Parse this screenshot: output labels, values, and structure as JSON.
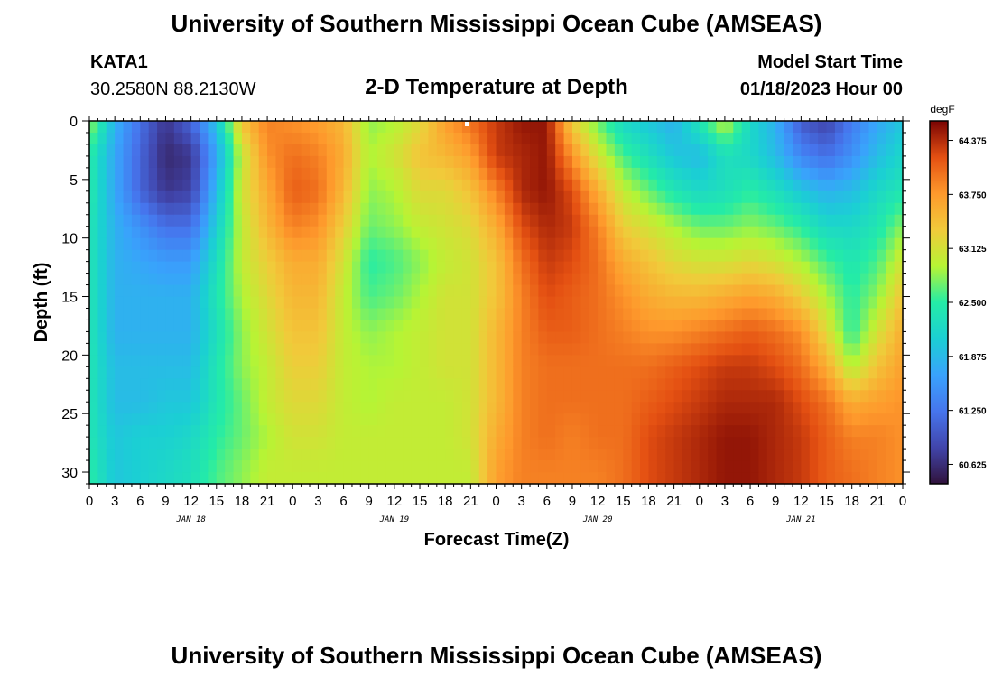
{
  "header": {
    "title": "University of Southern Mississippi Ocean Cube (AMSEAS)",
    "station_id": "KATA1",
    "coordinates": "30.2580N  88.2130W",
    "plot_title": "2-D Temperature at Depth",
    "model_start_label": "Model Start Time",
    "model_start_value": "01/18/2023 Hour 00"
  },
  "footer": {
    "title": "University of Southern Mississippi Ocean Cube (AMSEAS)"
  },
  "chart_data": {
    "type": "heatmap",
    "xlabel": "Forecast Time(Z)",
    "ylabel": "Depth (ft)",
    "x_hours_range": [
      0,
      96
    ],
    "x_tick_step_hours": 3,
    "x_tick_labels": [
      "0",
      "3",
      "6",
      "9",
      "12",
      "15",
      "18",
      "21",
      "0",
      "3",
      "6",
      "9",
      "12",
      "15",
      "18",
      "21",
      "0",
      "3",
      "6",
      "9",
      "12",
      "15",
      "18",
      "21",
      "0",
      "3",
      "6",
      "9",
      "12",
      "15",
      "18",
      "21",
      "0"
    ],
    "day_labels": [
      {
        "label": "JAN 18",
        "center_hour": 12
      },
      {
        "label": "JAN 19",
        "center_hour": 36
      },
      {
        "label": "JAN 20",
        "center_hour": 60
      },
      {
        "label": "JAN 21",
        "center_hour": 84
      }
    ],
    "y_range_ft": [
      0,
      31
    ],
    "y_ticks": [
      0,
      5,
      10,
      15,
      20,
      25,
      30
    ],
    "y_tick_labels": [
      "0",
      "5",
      "10",
      "15",
      "20",
      "25",
      "30"
    ],
    "colorbar": {
      "unit": "degF",
      "min": 60.4,
      "max": 64.6,
      "tick_values": [
        64.375,
        63.75,
        63.125,
        62.5,
        61.875,
        61.25,
        60.625
      ],
      "tick_labels": [
        "64.375",
        "63.750",
        "63.125",
        "62.500",
        "61.875",
        "61.250",
        "60.625"
      ]
    },
    "depths_ft": [
      0,
      3,
      6,
      9,
      12,
      15,
      18,
      21,
      24,
      27,
      30
    ],
    "times_hours": [
      0,
      3,
      6,
      9,
      12,
      15,
      18,
      21,
      24,
      27,
      30,
      33,
      36,
      39,
      42,
      45,
      48,
      51,
      54,
      57,
      60,
      63,
      66,
      69,
      72,
      75,
      78,
      81,
      84,
      87,
      90,
      93,
      96
    ],
    "temperature_degF": [
      [
        62.9,
        62.5,
        62.5,
        62.4,
        62.4,
        62.4,
        62.4,
        62.4,
        62.4,
        62.4,
        62.5
      ],
      [
        61.8,
        61.7,
        61.7,
        61.8,
        61.8,
        61.8,
        61.8,
        61.9,
        61.9,
        62.0,
        62.0
      ],
      [
        61.2,
        61.1,
        61.1,
        61.5,
        61.7,
        61.8,
        61.8,
        61.9,
        61.9,
        62.1,
        62.1
      ],
      [
        60.7,
        60.6,
        60.7,
        61.2,
        61.6,
        61.8,
        61.8,
        61.9,
        62.0,
        62.1,
        62.2
      ],
      [
        61.1,
        60.7,
        60.8,
        61.2,
        61.6,
        61.8,
        61.8,
        61.9,
        62.0,
        62.2,
        62.3
      ],
      [
        62.0,
        61.7,
        61.9,
        62.1,
        62.3,
        62.4,
        62.3,
        62.4,
        62.4,
        62.5,
        62.6
      ],
      [
        63.4,
        63.0,
        63.1,
        63.0,
        63.0,
        62.9,
        62.8,
        62.8,
        62.7,
        62.7,
        62.8
      ],
      [
        63.9,
        63.8,
        63.6,
        63.5,
        63.3,
        63.2,
        63.1,
        63.0,
        63.0,
        62.9,
        63.0
      ],
      [
        63.8,
        64.0,
        64.1,
        63.9,
        63.6,
        63.5,
        63.4,
        63.3,
        63.2,
        63.1,
        63.0
      ],
      [
        63.7,
        63.9,
        64.0,
        63.8,
        63.6,
        63.5,
        63.4,
        63.3,
        63.2,
        63.1,
        63.0
      ],
      [
        63.5,
        63.6,
        63.5,
        63.3,
        63.1,
        63.0,
        63.0,
        63.0,
        63.0,
        63.0,
        63.0
      ],
      [
        62.8,
        62.9,
        62.8,
        62.7,
        62.5,
        62.6,
        62.8,
        62.9,
        62.9,
        63.0,
        63.0
      ],
      [
        62.9,
        63.1,
        62.9,
        62.8,
        62.6,
        62.7,
        62.9,
        62.9,
        63.0,
        63.0,
        63.0
      ],
      [
        63.2,
        63.4,
        63.2,
        63.0,
        62.8,
        62.9,
        63.0,
        63.0,
        63.0,
        63.0,
        63.0
      ],
      [
        63.7,
        63.5,
        63.2,
        63.1,
        63.0,
        63.1,
        63.1,
        63.1,
        63.0,
        63.0,
        63.0
      ],
      [
        64.0,
        63.7,
        63.4,
        63.2,
        63.1,
        63.1,
        63.1,
        63.1,
        63.1,
        63.1,
        63.0
      ],
      [
        64.3,
        64.3,
        63.9,
        63.6,
        63.4,
        63.4,
        63.5,
        63.5,
        63.5,
        63.6,
        63.7
      ],
      [
        64.5,
        64.4,
        64.4,
        64.2,
        64.0,
        63.9,
        63.9,
        63.9,
        63.9,
        63.9,
        63.9
      ],
      [
        64.5,
        64.5,
        64.5,
        64.4,
        64.3,
        64.2,
        64.1,
        64.0,
        64.0,
        64.0,
        63.9
      ],
      [
        63.3,
        63.8,
        64.2,
        64.3,
        64.2,
        64.1,
        64.1,
        64.0,
        64.0,
        63.9,
        63.9
      ],
      [
        62.7,
        63.1,
        63.6,
        63.9,
        64.0,
        64.0,
        64.0,
        64.0,
        64.0,
        64.0,
        63.9
      ],
      [
        62.2,
        62.6,
        63.0,
        63.3,
        63.6,
        63.8,
        63.9,
        64.0,
        64.0,
        64.0,
        64.0
      ],
      [
        62.0,
        62.3,
        62.7,
        63.1,
        63.4,
        63.6,
        63.8,
        64.0,
        64.1,
        64.2,
        64.2
      ],
      [
        61.8,
        62.0,
        62.4,
        62.9,
        63.2,
        63.5,
        63.8,
        64.1,
        64.2,
        64.3,
        64.3
      ],
      [
        62.4,
        61.9,
        62.2,
        62.7,
        63.1,
        63.5,
        63.9,
        64.2,
        64.3,
        64.4,
        64.4
      ],
      [
        63.0,
        62.3,
        62.3,
        62.7,
        63.1,
        63.6,
        64.0,
        64.3,
        64.4,
        64.5,
        64.5
      ],
      [
        62.2,
        62.2,
        62.5,
        62.8,
        63.2,
        63.7,
        64.1,
        64.3,
        64.4,
        64.5,
        64.5
      ],
      [
        61.8,
        61.9,
        62.3,
        62.7,
        63.1,
        63.6,
        64.0,
        64.2,
        64.4,
        64.4,
        64.4
      ],
      [
        61.0,
        61.4,
        62.0,
        62.5,
        62.9,
        63.3,
        63.8,
        64.0,
        64.2,
        64.3,
        64.3
      ],
      [
        60.8,
        61.2,
        61.8,
        62.2,
        62.6,
        62.9,
        63.2,
        63.6,
        64.0,
        64.1,
        64.1
      ],
      [
        61.3,
        61.5,
        61.9,
        62.2,
        62.4,
        62.5,
        62.5,
        62.9,
        63.6,
        63.9,
        64.0
      ],
      [
        61.7,
        61.9,
        62.2,
        62.4,
        62.6,
        62.8,
        63.1,
        63.4,
        63.7,
        63.9,
        63.9
      ],
      [
        62.0,
        62.2,
        62.4,
        62.8,
        63.1,
        63.4,
        63.6,
        63.7,
        63.8,
        63.8,
        63.8
      ]
    ]
  }
}
